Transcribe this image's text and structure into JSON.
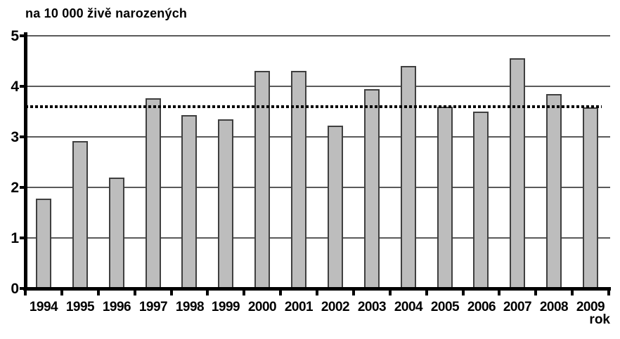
{
  "page": {
    "background": "#ffffff"
  },
  "chart_data": {
    "type": "bar",
    "title": "na 10 000 živě narozených",
    "xlabel": "rok",
    "ylabel": "",
    "categories": [
      "1994",
      "1995",
      "1996",
      "1997",
      "1998",
      "1999",
      "2000",
      "2001",
      "2002",
      "2003",
      "2004",
      "2005",
      "2006",
      "2007",
      "2008",
      "2009"
    ],
    "values": [
      1.78,
      2.92,
      2.2,
      3.76,
      3.43,
      3.35,
      4.3,
      4.3,
      3.22,
      3.95,
      4.4,
      3.6,
      3.5,
      4.55,
      3.85,
      3.58
    ],
    "reference_line": {
      "value": 3.6,
      "style": "dotted"
    },
    "ylim": [
      0,
      5
    ],
    "yticks": [
      0,
      1,
      2,
      3,
      4,
      5
    ],
    "grid": true,
    "legend": "none",
    "colors": {
      "bar_fill": "#bdbdbd",
      "bar_border": "#3f3f3f",
      "axis": "#000000",
      "gridline": "#5a5a5a",
      "reference_line": "#000000",
      "text": "#000000"
    }
  }
}
